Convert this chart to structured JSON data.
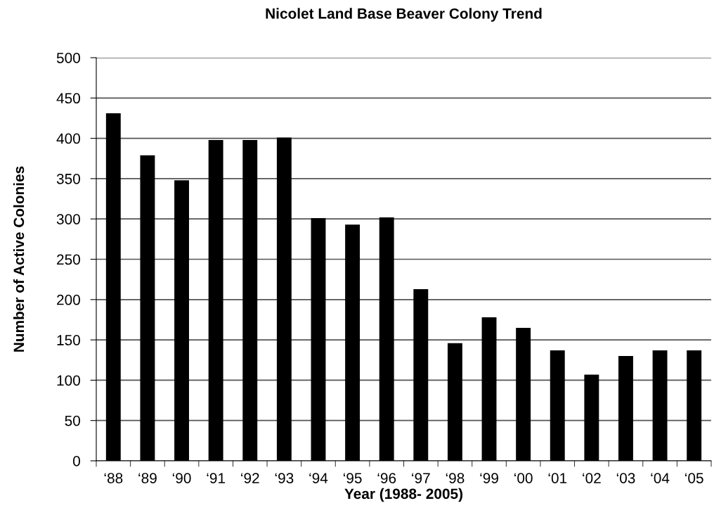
{
  "chart_data": {
    "type": "bar",
    "title": "Nicolet Land Base Beaver Colony Trend",
    "xlabel": "Year (1988- 2005)",
    "ylabel": "Number of Active Colonies",
    "categories": [
      "‘88",
      "‘89",
      "‘90",
      "‘91",
      "‘92",
      "‘93",
      "‘94",
      "‘95",
      "‘96",
      "‘97",
      "‘98",
      "‘99",
      "‘00",
      "‘01",
      "‘02",
      "‘03",
      "‘04",
      "‘05"
    ],
    "values": [
      431,
      379,
      348,
      398,
      398,
      401,
      301,
      293,
      302,
      213,
      146,
      178,
      165,
      137,
      107,
      130,
      137,
      137
    ],
    "color": "#000000",
    "ylim": [
      0,
      500
    ],
    "yticks": [
      0,
      50,
      100,
      150,
      200,
      250,
      300,
      350,
      400,
      450,
      500
    ],
    "grid": "y",
    "legend": false
  }
}
